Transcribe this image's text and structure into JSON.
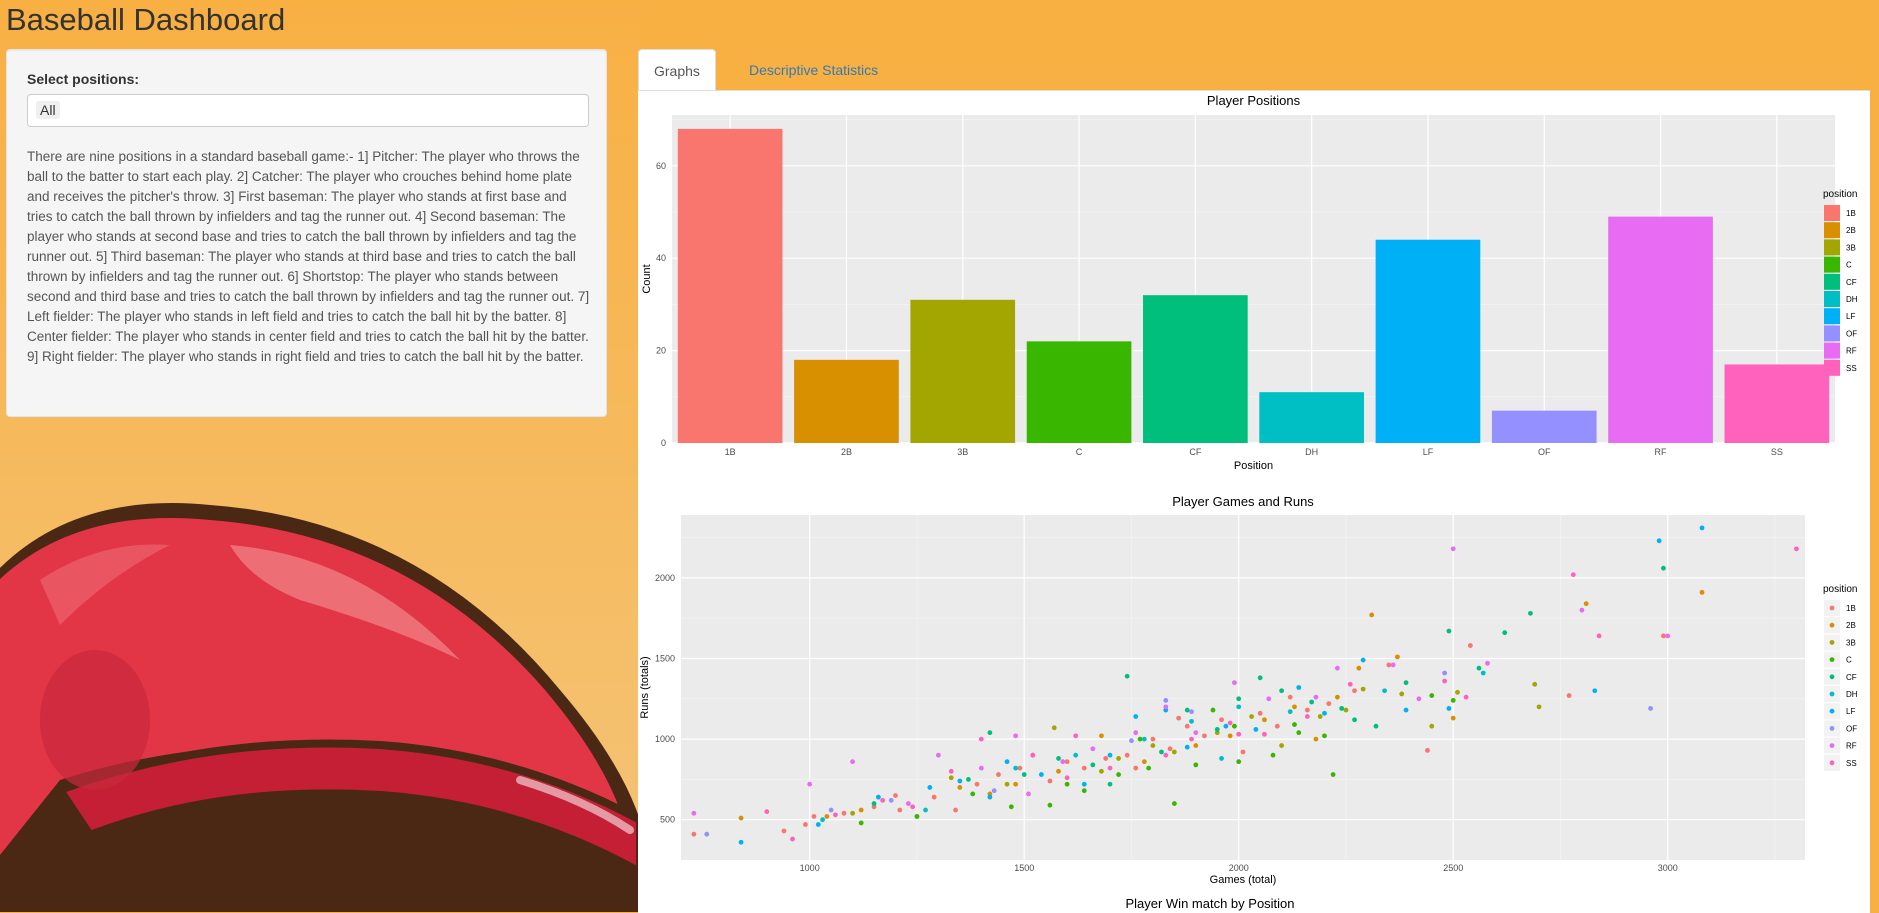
{
  "app": {
    "title": "Baseball Dashboard"
  },
  "sidebar": {
    "select_label": "Select positions:",
    "selected_value": "All",
    "description": "There are nine positions in a standard baseball game:- 1] Pitcher: The player who throws the ball to the batter to start each play. 2] Catcher: The player who crouches behind home plate and receives the pitcher's throw. 3] First baseman: The player who stands at first base and tries to catch the ball thrown by infielders and tag the runner out. 4] Second baseman: The player who stands at second base and tries to catch the ball thrown by infielders and tag the runner out. 5] Third baseman: The player who stands at third base and tries to catch the ball thrown by infielders and tag the runner out. 6] Shortstop: The player who stands between second and third base and tries to catch the ball thrown by infielders and tag the runner out. 7] Left fielder: The player who stands in left field and tries to catch the ball hit by the batter. 8] Center fielder: The player who stands in center field and tries to catch the ball hit by the batter. 9] Right fielder: The player who stands in right field and tries to catch the ball hit by the batter."
  },
  "tabs": [
    {
      "label": "Graphs",
      "active": true
    },
    {
      "label": "Descriptive Statistics",
      "active": false
    }
  ],
  "colors": {
    "1B": "#F8766D",
    "2B": "#D89000",
    "3B": "#A3A500",
    "C": "#39B600",
    "CF": "#00BF7D",
    "DH": "#00BFC4",
    "LF": "#00B0F6",
    "OF": "#9590FF",
    "RF": "#E76BF3",
    "SS": "#FF62BC"
  },
  "chart_data": [
    {
      "type": "bar",
      "title": "Player Positions",
      "xlabel": "Position",
      "ylabel": "Count",
      "legend_title": "position",
      "legend_position": "right",
      "categories": [
        "1B",
        "2B",
        "3B",
        "C",
        "CF",
        "DH",
        "LF",
        "OF",
        "RF",
        "SS"
      ],
      "values": [
        68,
        18,
        31,
        22,
        32,
        11,
        44,
        7,
        49,
        17
      ],
      "ylim": [
        0,
        71
      ],
      "yticks": [
        0,
        20,
        40,
        60
      ],
      "grid": true
    },
    {
      "type": "scatter",
      "title": "Player Games and Runs",
      "xlabel": "Games (total)",
      "ylabel": "Runs (totals)",
      "legend_title": "position",
      "legend_position": "right",
      "categories": [
        "1B",
        "2B",
        "3B",
        "C",
        "CF",
        "DH",
        "LF",
        "OF",
        "RF",
        "SS"
      ],
      "xlim": [
        700,
        3320
      ],
      "ylim": [
        250,
        2390
      ],
      "xticks": [
        1000,
        1500,
        2000,
        2500,
        3000
      ],
      "yticks": [
        500,
        1000,
        1500,
        2000
      ],
      "grid": true,
      "points": [
        [
          730,
          410,
          "1B"
        ],
        [
          940,
          430,
          "1B"
        ],
        [
          990,
          470,
          "1B"
        ],
        [
          1010,
          520,
          "1B"
        ],
        [
          1080,
          540,
          "1B"
        ],
        [
          1150,
          580,
          "1B"
        ],
        [
          1210,
          560,
          "1B"
        ],
        [
          1290,
          640,
          "1B"
        ],
        [
          1340,
          560,
          "1B"
        ],
        [
          1390,
          720,
          "1B"
        ],
        [
          1440,
          780,
          "1B"
        ],
        [
          1490,
          820,
          "1B"
        ],
        [
          1520,
          900,
          "1B"
        ],
        [
          1560,
          740,
          "1B"
        ],
        [
          1600,
          860,
          "1B"
        ],
        [
          1640,
          820,
          "1B"
        ],
        [
          1690,
          880,
          "1B"
        ],
        [
          1740,
          900,
          "1B"
        ],
        [
          1800,
          1000,
          "1B"
        ],
        [
          1840,
          940,
          "1B"
        ],
        [
          1880,
          1080,
          "1B"
        ],
        [
          1920,
          1020,
          "1B"
        ],
        [
          1960,
          1120,
          "1B"
        ],
        [
          2010,
          920,
          "1B"
        ],
        [
          2050,
          1160,
          "1B"
        ],
        [
          2090,
          1080,
          "1B"
        ],
        [
          2160,
          1180,
          "1B"
        ],
        [
          2210,
          1220,
          "1B"
        ],
        [
          2270,
          1300,
          "1B"
        ],
        [
          2350,
          1460,
          "1B"
        ],
        [
          2440,
          930,
          "1B"
        ],
        [
          2540,
          1580,
          "1B"
        ],
        [
          2770,
          1270,
          "1B"
        ],
        [
          2990,
          1640,
          "1B"
        ],
        [
          1200,
          650,
          "1B"
        ],
        [
          1760,
          820,
          "1B"
        ],
        [
          1860,
          1130,
          "1B"
        ],
        [
          2120,
          1260,
          "1B"
        ],
        [
          840,
          510,
          "2B"
        ],
        [
          1040,
          520,
          "2B"
        ],
        [
          1120,
          560,
          "2B"
        ],
        [
          1420,
          660,
          "2B"
        ],
        [
          1480,
          720,
          "2B"
        ],
        [
          1580,
          800,
          "2B"
        ],
        [
          1680,
          1020,
          "2B"
        ],
        [
          1780,
          860,
          "2B"
        ],
        [
          1900,
          960,
          "2B"
        ],
        [
          1980,
          1020,
          "2B"
        ],
        [
          2060,
          1120,
          "2B"
        ],
        [
          2130,
          1200,
          "2B"
        ],
        [
          2230,
          1260,
          "2B"
        ],
        [
          2280,
          1440,
          "2B"
        ],
        [
          2310,
          1770,
          "2B"
        ],
        [
          2370,
          1510,
          "2B"
        ],
        [
          2500,
          1130,
          "2B"
        ],
        [
          2810,
          1840,
          "2B"
        ],
        [
          3080,
          1910,
          "2B"
        ],
        [
          1350,
          700,
          "2B"
        ],
        [
          2180,
          1000,
          "2B"
        ],
        [
          1100,
          540,
          "3B"
        ],
        [
          1250,
          520,
          "3B"
        ],
        [
          1330,
          760,
          "3B"
        ],
        [
          1460,
          720,
          "3B"
        ],
        [
          1570,
          1070,
          "3B"
        ],
        [
          1720,
          880,
          "3B"
        ],
        [
          1800,
          960,
          "3B"
        ],
        [
          1950,
          1040,
          "3B"
        ],
        [
          2030,
          1140,
          "3B"
        ],
        [
          2100,
          960,
          "3B"
        ],
        [
          2190,
          1140,
          "3B"
        ],
        [
          2250,
          1180,
          "3B"
        ],
        [
          2290,
          1310,
          "3B"
        ],
        [
          2450,
          1080,
          "3B"
        ],
        [
          2510,
          1290,
          "3B"
        ],
        [
          2690,
          1340,
          "3B"
        ],
        [
          2700,
          1200,
          "3B"
        ],
        [
          1680,
          800,
          "3B"
        ],
        [
          1850,
          920,
          "3B"
        ],
        [
          2380,
          1280,
          "3B"
        ],
        [
          1120,
          480,
          "C"
        ],
        [
          1250,
          520,
          "C"
        ],
        [
          1380,
          660,
          "C"
        ],
        [
          1470,
          580,
          "C"
        ],
        [
          1560,
          590,
          "C"
        ],
        [
          1640,
          680,
          "C"
        ],
        [
          1720,
          780,
          "C"
        ],
        [
          1790,
          820,
          "C"
        ],
        [
          1850,
          600,
          "C"
        ],
        [
          1900,
          840,
          "C"
        ],
        [
          1990,
          1080,
          "C"
        ],
        [
          2000,
          860,
          "C"
        ],
        [
          2080,
          900,
          "C"
        ],
        [
          2140,
          1040,
          "C"
        ],
        [
          2220,
          780,
          "C"
        ],
        [
          2450,
          1270,
          "C"
        ],
        [
          2500,
          1240,
          "C"
        ],
        [
          1600,
          720,
          "C"
        ],
        [
          1770,
          1000,
          "C"
        ],
        [
          1940,
          1180,
          "C"
        ],
        [
          2200,
          1020,
          "C"
        ],
        [
          2130,
          1090,
          "C"
        ],
        [
          1150,
          600,
          "CF"
        ],
        [
          1370,
          750,
          "CF"
        ],
        [
          1420,
          1040,
          "CF"
        ],
        [
          1500,
          780,
          "CF"
        ],
        [
          1580,
          880,
          "CF"
        ],
        [
          1660,
          840,
          "CF"
        ],
        [
          1740,
          1390,
          "CF"
        ],
        [
          1820,
          920,
          "CF"
        ],
        [
          1880,
          1180,
          "CF"
        ],
        [
          1950,
          1060,
          "CF"
        ],
        [
          2000,
          1250,
          "CF"
        ],
        [
          2050,
          1380,
          "CF"
        ],
        [
          2100,
          1300,
          "CF"
        ],
        [
          2170,
          1230,
          "CF"
        ],
        [
          2240,
          1190,
          "CF"
        ],
        [
          2320,
          1080,
          "CF"
        ],
        [
          2390,
          1350,
          "CF"
        ],
        [
          2490,
          1670,
          "CF"
        ],
        [
          2560,
          1440,
          "CF"
        ],
        [
          2680,
          1780,
          "CF"
        ],
        [
          2990,
          2060,
          "CF"
        ],
        [
          1700,
          720,
          "CF"
        ],
        [
          2270,
          1120,
          "CF"
        ],
        [
          2620,
          1660,
          "CF"
        ],
        [
          1030,
          500,
          "DH"
        ],
        [
          1270,
          560,
          "DH"
        ],
        [
          1480,
          820,
          "DH"
        ],
        [
          1620,
          900,
          "DH"
        ],
        [
          1780,
          1000,
          "DH"
        ],
        [
          1890,
          1110,
          "DH"
        ],
        [
          2000,
          1200,
          "DH"
        ],
        [
          2120,
          1170,
          "DH"
        ],
        [
          2340,
          1300,
          "DH"
        ],
        [
          2570,
          1410,
          "DH"
        ],
        [
          1960,
          880,
          "DH"
        ],
        [
          840,
          360,
          "LF"
        ],
        [
          1020,
          470,
          "LF"
        ],
        [
          1160,
          640,
          "LF"
        ],
        [
          1280,
          700,
          "LF"
        ],
        [
          1350,
          740,
          "LF"
        ],
        [
          1460,
          860,
          "LF"
        ],
        [
          1540,
          780,
          "LF"
        ],
        [
          1700,
          900,
          "LF"
        ],
        [
          1760,
          1140,
          "LF"
        ],
        [
          1880,
          950,
          "LF"
        ],
        [
          1970,
          1080,
          "LF"
        ],
        [
          2040,
          1060,
          "LF"
        ],
        [
          2140,
          1320,
          "LF"
        ],
        [
          2290,
          1490,
          "LF"
        ],
        [
          2390,
          1180,
          "LF"
        ],
        [
          2490,
          1190,
          "LF"
        ],
        [
          2830,
          1300,
          "LF"
        ],
        [
          2980,
          2230,
          "LF"
        ],
        [
          3080,
          2310,
          "LF"
        ],
        [
          1420,
          640,
          "LF"
        ],
        [
          1640,
          720,
          "LF"
        ],
        [
          1830,
          1180,
          "LF"
        ],
        [
          2200,
          1160,
          "LF"
        ],
        [
          760,
          410,
          "OF"
        ],
        [
          1050,
          560,
          "OF"
        ],
        [
          1190,
          620,
          "OF"
        ],
        [
          1430,
          680,
          "OF"
        ],
        [
          1750,
          990,
          "OF"
        ],
        [
          1890,
          1170,
          "OF"
        ],
        [
          2480,
          1410,
          "OF"
        ],
        [
          2960,
          1190,
          "OF"
        ],
        [
          1830,
          1240,
          "OF"
        ],
        [
          730,
          540,
          "RF"
        ],
        [
          1000,
          720,
          "RF"
        ],
        [
          1100,
          860,
          "RF"
        ],
        [
          1230,
          600,
          "RF"
        ],
        [
          1300,
          900,
          "RF"
        ],
        [
          1400,
          820,
          "RF"
        ],
        [
          1510,
          660,
          "RF"
        ],
        [
          1590,
          860,
          "RF"
        ],
        [
          1660,
          940,
          "RF"
        ],
        [
          1760,
          1040,
          "RF"
        ],
        [
          1830,
          1200,
          "RF"
        ],
        [
          1900,
          1040,
          "RF"
        ],
        [
          1990,
          1350,
          "RF"
        ],
        [
          2070,
          1250,
          "RF"
        ],
        [
          2180,
          1260,
          "RF"
        ],
        [
          2360,
          1460,
          "RF"
        ],
        [
          2420,
          1250,
          "RF"
        ],
        [
          2500,
          2180,
          "RF"
        ],
        [
          2580,
          1470,
          "RF"
        ],
        [
          2800,
          1800,
          "RF"
        ],
        [
          3000,
          1640,
          "RF"
        ],
        [
          1480,
          1020,
          "RF"
        ],
        [
          2230,
          1440,
          "RF"
        ],
        [
          900,
          550,
          "SS"
        ],
        [
          960,
          380,
          "SS"
        ],
        [
          1060,
          530,
          "SS"
        ],
        [
          1240,
          580,
          "SS"
        ],
        [
          1330,
          800,
          "SS"
        ],
        [
          1400,
          1000,
          "SS"
        ],
        [
          1520,
          900,
          "SS"
        ],
        [
          1620,
          1020,
          "SS"
        ],
        [
          1700,
          820,
          "SS"
        ],
        [
          1830,
          900,
          "SS"
        ],
        [
          1890,
          1000,
          "SS"
        ],
        [
          1980,
          1100,
          "SS"
        ],
        [
          2060,
          1030,
          "SS"
        ],
        [
          2160,
          1140,
          "SS"
        ],
        [
          2260,
          1340,
          "SS"
        ],
        [
          2480,
          1360,
          "SS"
        ],
        [
          2530,
          1260,
          "SS"
        ],
        [
          2780,
          2020,
          "SS"
        ],
        [
          2840,
          1640,
          "SS"
        ],
        [
          3300,
          2180,
          "SS"
        ],
        [
          1170,
          620,
          "SS"
        ],
        [
          1600,
          760,
          "SS"
        ],
        [
          2000,
          1030,
          "SS"
        ]
      ]
    },
    {
      "type": "bar",
      "title": "Player Win match by Position"
    }
  ]
}
